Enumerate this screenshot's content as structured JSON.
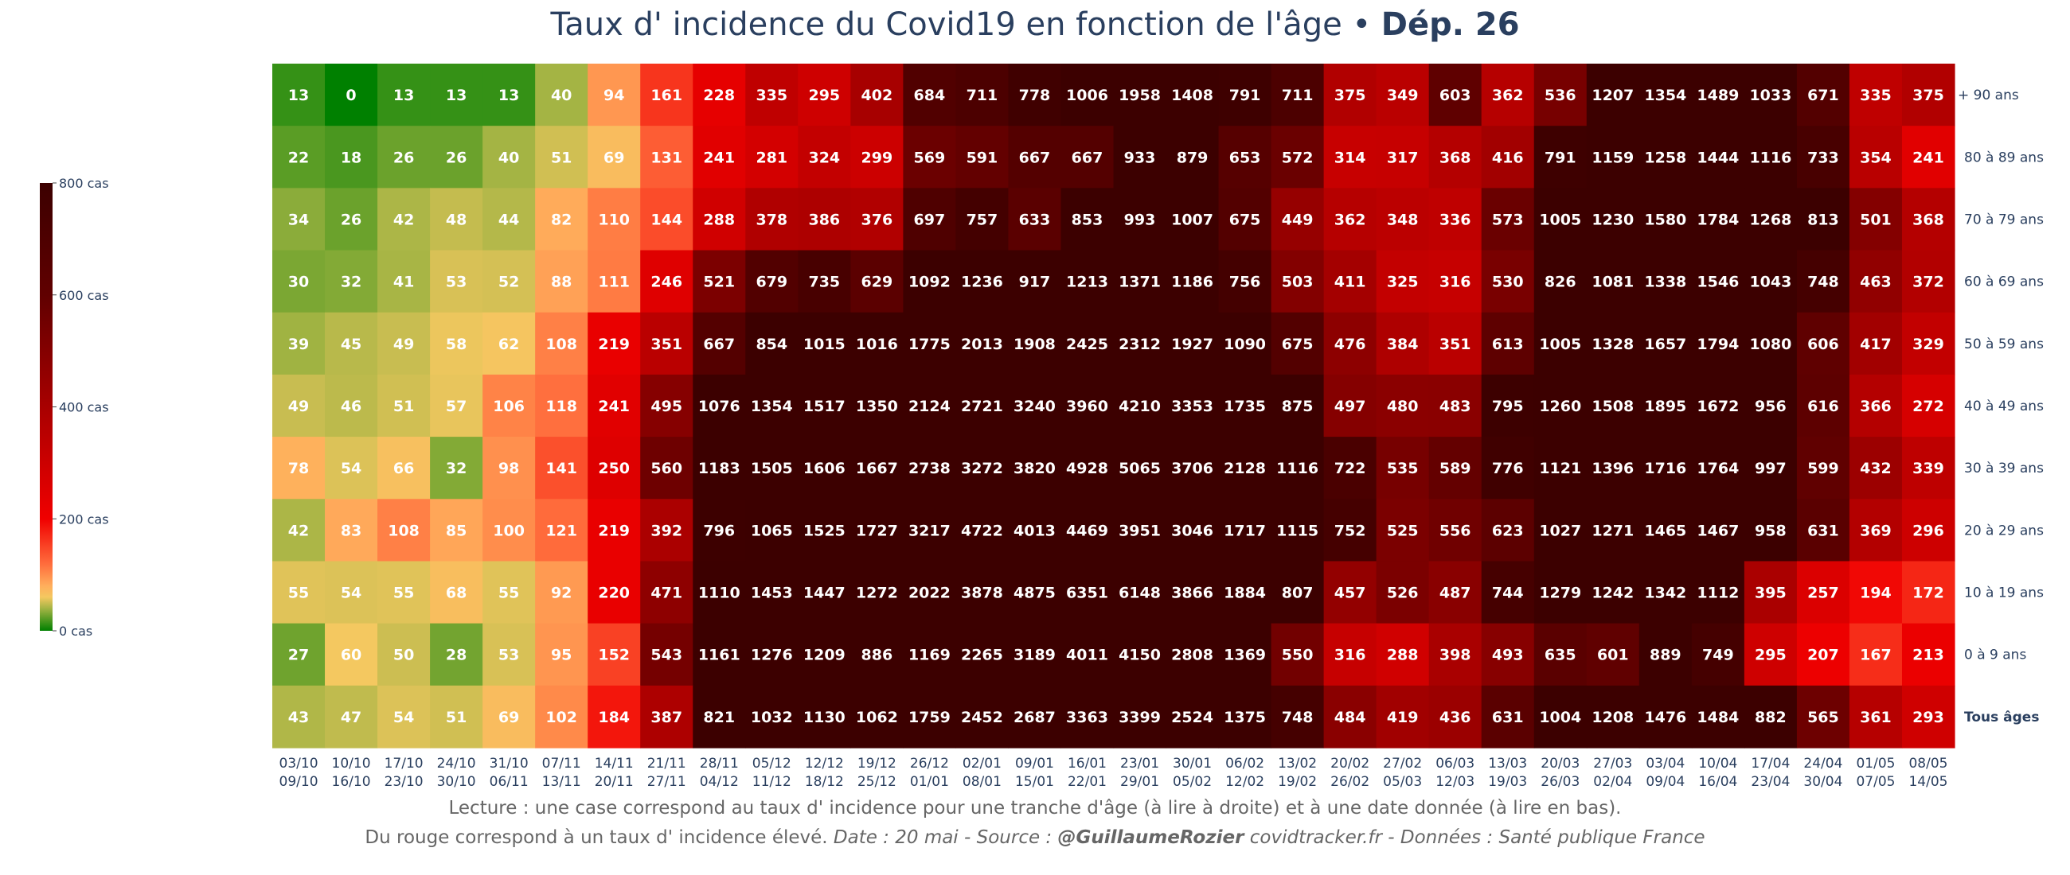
{
  "chart_data": {
    "type": "heatmap",
    "title_main": "Taux d' incidence du Covid19 en fonction de l'âge • ",
    "title_bold": "Dép. 26",
    "x_labels_top": [
      "03/10",
      "10/10",
      "17/10",
      "24/10",
      "31/10",
      "07/11",
      "14/11",
      "21/11",
      "28/11",
      "05/12",
      "12/12",
      "19/12",
      "26/12",
      "02/01",
      "09/01",
      "16/01",
      "23/01",
      "30/01",
      "06/02",
      "13/02",
      "20/02",
      "27/02",
      "06/03",
      "13/03",
      "20/03",
      "27/03",
      "03/04",
      "10/04",
      "17/04",
      "24/04",
      "01/05",
      "08/05"
    ],
    "x_labels_bottom": [
      "09/10",
      "16/10",
      "23/10",
      "30/10",
      "06/11",
      "13/11",
      "20/11",
      "27/11",
      "04/12",
      "11/12",
      "18/12",
      "25/12",
      "01/01",
      "08/01",
      "15/01",
      "22/01",
      "29/01",
      "05/02",
      "12/02",
      "19/02",
      "26/02",
      "05/03",
      "12/03",
      "19/03",
      "26/03",
      "02/04",
      "09/04",
      "16/04",
      "23/04",
      "30/04",
      "07/05",
      "14/05"
    ],
    "y_labels": [
      "+ 90 ans",
      "80 à 89 ans",
      "70 à 79 ans",
      "60 à 69 ans",
      "50 à 59 ans",
      "40 à 49 ans",
      "30 à 39 ans",
      "20 à 29 ans",
      "10 à 19 ans",
      "0 à 9 ans",
      "Tous âges"
    ],
    "values": [
      [
        13,
        0,
        13,
        13,
        13,
        40,
        94,
        161,
        228,
        335,
        295,
        402,
        684,
        711,
        778,
        1006,
        1958,
        1408,
        791,
        711,
        375,
        349,
        603,
        362,
        536,
        1207,
        1354,
        1489,
        1033,
        671,
        335,
        375
      ],
      [
        22,
        18,
        26,
        26,
        40,
        51,
        69,
        131,
        241,
        281,
        324,
        299,
        569,
        591,
        667,
        667,
        933,
        879,
        653,
        572,
        314,
        317,
        368,
        416,
        791,
        1159,
        1258,
        1444,
        1116,
        733,
        354,
        241
      ],
      [
        34,
        26,
        42,
        48,
        44,
        82,
        110,
        144,
        288,
        378,
        386,
        376,
        697,
        757,
        633,
        853,
        993,
        1007,
        675,
        449,
        362,
        348,
        336,
        573,
        1005,
        1230,
        1580,
        1784,
        1268,
        813,
        501,
        368
      ],
      [
        30,
        32,
        41,
        53,
        52,
        88,
        111,
        246,
        521,
        679,
        735,
        629,
        1092,
        1236,
        917,
        1213,
        1371,
        1186,
        756,
        503,
        411,
        325,
        316,
        530,
        826,
        1081,
        1338,
        1546,
        1043,
        748,
        463,
        372
      ],
      [
        39,
        45,
        49,
        58,
        62,
        108,
        219,
        351,
        667,
        854,
        1015,
        1016,
        1775,
        2013,
        1908,
        2425,
        2312,
        1927,
        1090,
        675,
        476,
        384,
        351,
        613,
        1005,
        1328,
        1657,
        1794,
        1080,
        606,
        417,
        329
      ],
      [
        49,
        46,
        51,
        57,
        106,
        118,
        241,
        495,
        1076,
        1354,
        1517,
        1350,
        2124,
        2721,
        3240,
        3960,
        4210,
        3353,
        1735,
        875,
        497,
        480,
        483,
        795,
        1260,
        1508,
        1895,
        1672,
        956,
        616,
        366,
        272
      ],
      [
        78,
        54,
        66,
        32,
        98,
        141,
        250,
        560,
        1183,
        1505,
        1606,
        1667,
        2738,
        3272,
        3820,
        4928,
        5065,
        3706,
        2128,
        1116,
        722,
        535,
        589,
        776,
        1121,
        1396,
        1716,
        1764,
        997,
        599,
        432,
        339
      ],
      [
        42,
        83,
        108,
        85,
        100,
        121,
        219,
        392,
        796,
        1065,
        1525,
        1727,
        3217,
        4722,
        4013,
        4469,
        3951,
        3046,
        1717,
        1115,
        752,
        525,
        556,
        623,
        1027,
        1271,
        1465,
        1467,
        958,
        631,
        369,
        296
      ],
      [
        55,
        54,
        55,
        68,
        55,
        92,
        220,
        471,
        1110,
        1453,
        1447,
        1272,
        2022,
        3878,
        4875,
        6351,
        6148,
        3866,
        1884,
        807,
        457,
        526,
        487,
        744,
        1279,
        1242,
        1342,
        1112,
        395,
        257,
        194,
        172
      ],
      [
        27,
        60,
        50,
        28,
        53,
        95,
        152,
        543,
        1161,
        1276,
        1209,
        886,
        1169,
        2265,
        3189,
        4011,
        4150,
        2808,
        1369,
        550,
        316,
        288,
        398,
        493,
        635,
        601,
        889,
        749,
        295,
        207,
        167,
        213
      ],
      [
        43,
        47,
        54,
        51,
        69,
        102,
        184,
        387,
        821,
        1032,
        1130,
        1062,
        1759,
        2452,
        2687,
        3363,
        3399,
        2524,
        1375,
        748,
        484,
        419,
        436,
        631,
        1004,
        1208,
        1476,
        1484,
        882,
        565,
        361,
        293
      ]
    ],
    "zrange": [
      0,
      800
    ],
    "colorbar": {
      "ticks": [
        0,
        200,
        400,
        600,
        800
      ],
      "tick_labels": [
        "0 cas",
        "200 cas",
        "400 cas",
        "600 cas",
        "800 cas"
      ],
      "colorscale": [
        [
          0,
          "#008000"
        ],
        [
          40,
          "#a4b444"
        ],
        [
          60,
          "#f4c860"
        ],
        [
          80,
          "#ffae5c"
        ],
        [
          120,
          "#ff6c3c"
        ],
        [
          200,
          "#f00000"
        ],
        [
          400,
          "#a80000"
        ],
        [
          600,
          "#600000"
        ],
        [
          800,
          "#3c0000"
        ]
      ]
    },
    "label_color": "#ffffff",
    "axis_text_color": "#2a3f5f"
  },
  "footer": {
    "line1": "Lecture : une case correspond au taux d' incidence pour une tranche d'âge (à lire à droite) et à une date donnée (à lire en bas).",
    "line2_plain": "Du rouge correspond à un taux d' incidence élevé.  ",
    "line2_italic1": "Date : 20 mai - Source : ",
    "line2_bold": "@GuillaumeRozier",
    "line2_italic2": " covidtracker.fr - Données : Santé publique France"
  }
}
